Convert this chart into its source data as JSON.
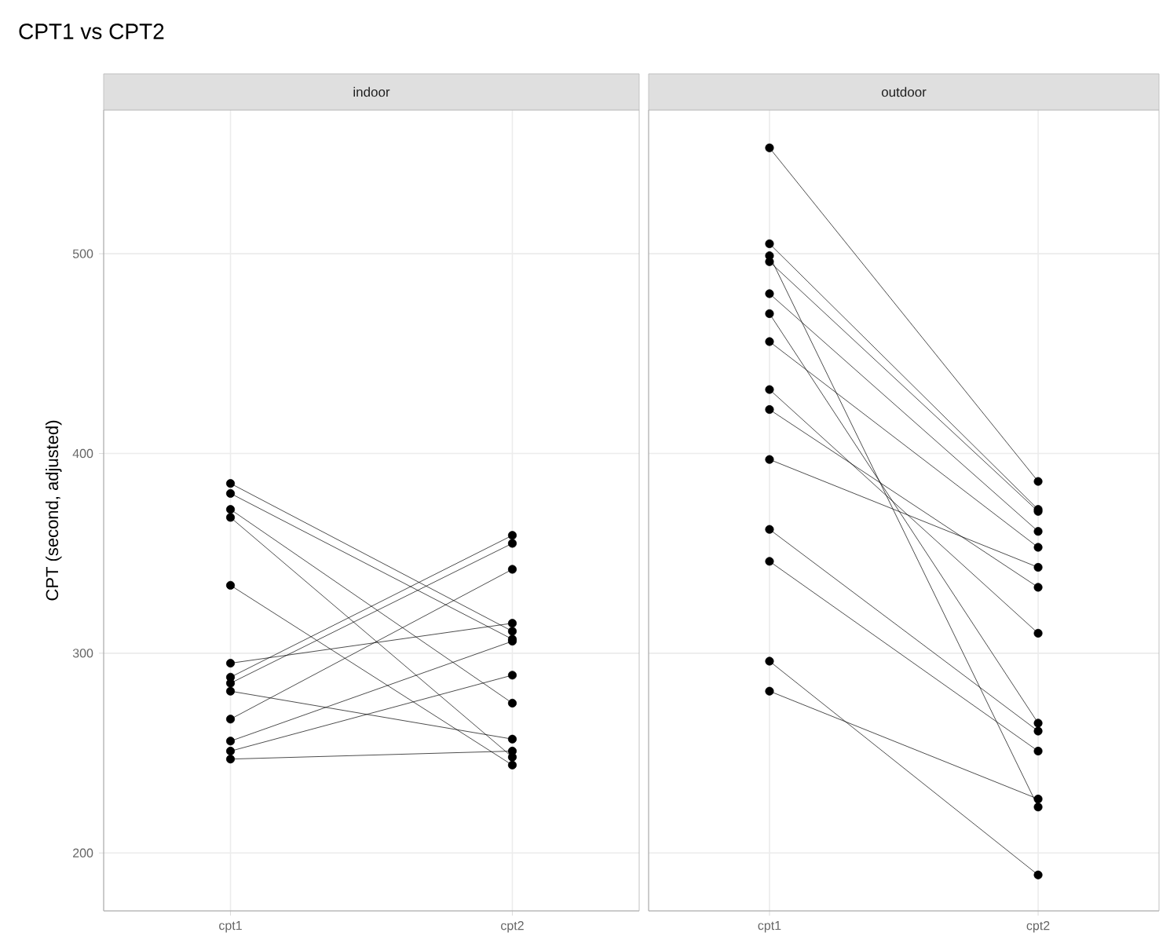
{
  "chart_data": [
    {
      "type": "line",
      "title": "CPT1 vs CPT2",
      "subtitle": "indoor",
      "ylabel": "CPT (second, adjusted)",
      "categories": [
        "cpt1",
        "cpt2"
      ],
      "ylim": [
        171,
        572
      ],
      "yticks": [
        200,
        300,
        400,
        500
      ],
      "grid": true,
      "marker": "circle",
      "line_style": "solid",
      "series": [
        {
          "color": "#000000",
          "values": [
            385,
            311
          ]
        },
        {
          "color": "#000000",
          "values": [
            380,
            307
          ]
        },
        {
          "color": "#000000",
          "values": [
            372,
            275
          ]
        },
        {
          "color": "#000000",
          "values": [
            368,
            248
          ]
        },
        {
          "color": "#000000",
          "values": [
            334,
            244
          ]
        },
        {
          "color": "#000000",
          "values": [
            295,
            315
          ]
        },
        {
          "color": "#000000",
          "values": [
            288,
            359
          ]
        },
        {
          "color": "#000000",
          "values": [
            285,
            355
          ]
        },
        {
          "color": "#000000",
          "values": [
            281,
            257
          ]
        },
        {
          "color": "#000000",
          "values": [
            267,
            342
          ]
        },
        {
          "color": "#000000",
          "values": [
            256,
            306
          ]
        },
        {
          "color": "#000000",
          "values": [
            251,
            289
          ]
        },
        {
          "color": "#000000",
          "values": [
            247,
            251
          ]
        }
      ]
    },
    {
      "type": "line",
      "subtitle": "outdoor",
      "categories": [
        "cpt1",
        "cpt2"
      ],
      "ylim": [
        171,
        572
      ],
      "tick_labels": "x",
      "grid": true,
      "marker": "circle",
      "line_style": "solid",
      "series": [
        {
          "color": "#000000",
          "values": [
            553,
            386
          ]
        },
        {
          "color": "#000000",
          "values": [
            505,
            372
          ]
        },
        {
          "color": "#000000",
          "values": [
            499,
            223
          ]
        },
        {
          "color": "#000000",
          "values": [
            496,
            371
          ]
        },
        {
          "color": "#000000",
          "values": [
            480,
            361
          ]
        },
        {
          "color": "#000000",
          "values": [
            470,
            265
          ]
        },
        {
          "color": "#000000",
          "values": [
            456,
            353
          ]
        },
        {
          "color": "#000000",
          "values": [
            432,
            310
          ]
        },
        {
          "color": "#000000",
          "values": [
            422,
            333
          ]
        },
        {
          "color": "#000000",
          "values": [
            397,
            343
          ]
        },
        {
          "color": "#000000",
          "values": [
            362,
            261
          ]
        },
        {
          "color": "#000000",
          "values": [
            346,
            251
          ]
        },
        {
          "color": "#000000",
          "values": [
            296,
            189
          ]
        },
        {
          "color": "#000000",
          "values": [
            281,
            227
          ]
        }
      ]
    }
  ]
}
